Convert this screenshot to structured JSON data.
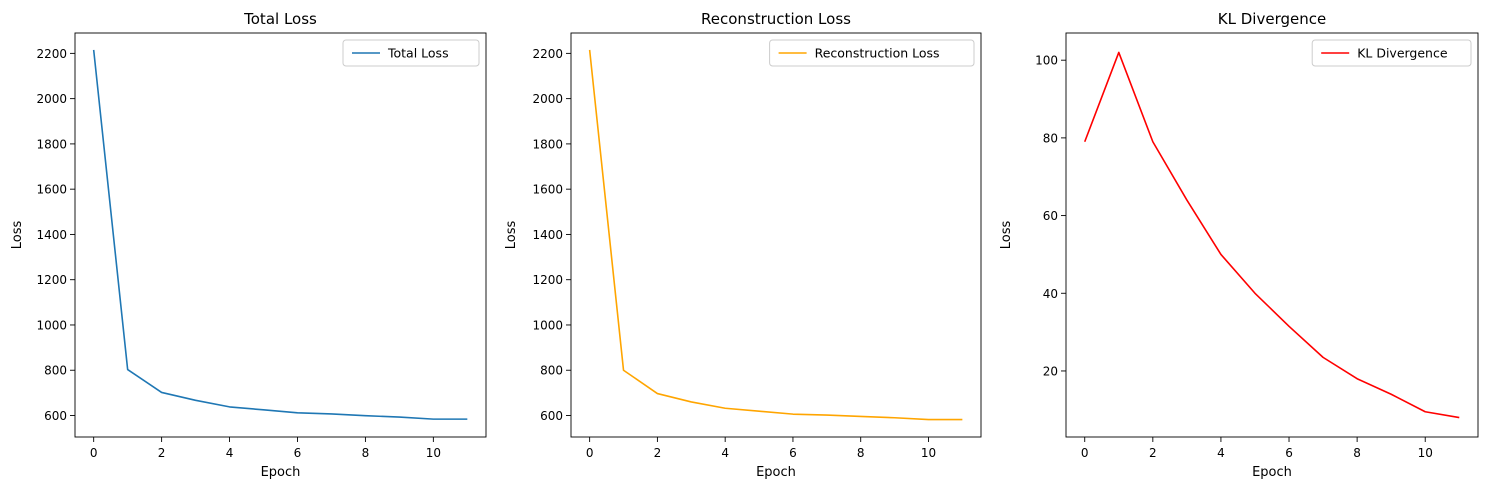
{
  "chart_data": [
    {
      "type": "line",
      "title": "Total Loss",
      "xlabel": "Epoch",
      "ylabel": "Loss",
      "x": [
        0,
        1,
        2,
        3,
        4,
        5,
        6,
        7,
        8,
        9,
        10,
        11
      ],
      "series": [
        {
          "name": "Total Loss",
          "color": "#1f77b4",
          "values": [
            2215,
            803,
            702,
            667,
            638,
            625,
            612,
            607,
            599,
            593,
            584,
            584
          ]
        }
      ],
      "xlim": [
        -0.55,
        11.55
      ],
      "ylim": [
        505,
        2290
      ],
      "xticks": [
        0,
        2,
        4,
        6,
        8,
        10
      ],
      "yticks": [
        600,
        800,
        1000,
        1200,
        1400,
        1600,
        1800,
        2000,
        2200
      ],
      "legend": "upper-right",
      "grid": false
    },
    {
      "type": "line",
      "title": "Reconstruction Loss",
      "xlabel": "Epoch",
      "ylabel": "Loss",
      "x": [
        0,
        1,
        2,
        3,
        4,
        5,
        6,
        7,
        8,
        9,
        10,
        11
      ],
      "series": [
        {
          "name": "Reconstruction Loss",
          "color": "#ffa500",
          "values": [
            2215,
            800,
            697,
            660,
            632,
            619,
            606,
            602,
            596,
            590,
            582,
            582
          ]
        }
      ],
      "xlim": [
        -0.55,
        11.55
      ],
      "ylim": [
        505,
        2290
      ],
      "xticks": [
        0,
        2,
        4,
        6,
        8,
        10
      ],
      "yticks": [
        600,
        800,
        1000,
        1200,
        1400,
        1600,
        1800,
        2000,
        2200
      ],
      "legend": "upper-right",
      "grid": false
    },
    {
      "type": "line",
      "title": "KL Divergence",
      "xlabel": "Epoch",
      "ylabel": "Loss",
      "x": [
        0,
        1,
        2,
        3,
        4,
        5,
        6,
        7,
        8,
        9,
        10,
        11
      ],
      "series": [
        {
          "name": "KL Divergence",
          "color": "#ff0000",
          "values": [
            79,
            102,
            79,
            64,
            50,
            40,
            31.5,
            23.5,
            18,
            14,
            9.5,
            8
          ]
        }
      ],
      "xlim": [
        -0.55,
        11.55
      ],
      "ylim": [
        3,
        107
      ],
      "xticks": [
        0,
        2,
        4,
        6,
        8,
        10
      ],
      "yticks": [
        20,
        40,
        60,
        80,
        100
      ],
      "legend": "upper-right",
      "grid": false
    }
  ]
}
